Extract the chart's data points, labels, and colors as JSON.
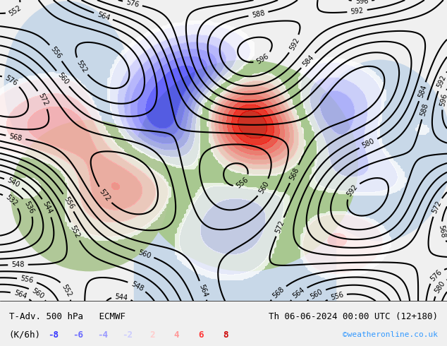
{
  "title_left": "T-Adv. 500 hPa   ECMWF",
  "title_right": "Th 06-06-2024 00:00 UTC (12+180)",
  "legend_label": "(K/6h)",
  "legend_values": [
    "-8",
    "-6",
    "-4",
    "-2",
    "2",
    "4",
    "6",
    "8"
  ],
  "legend_colors": [
    "#3333ff",
    "#6666ff",
    "#9999ff",
    "#ccccff",
    "#ffcccc",
    "#ff9999",
    "#ff3333",
    "#cc0000"
  ],
  "watermark": "©weatheronline.co.uk",
  "watermark_color": "#3399ff",
  "bg_color": "#f0f0f0",
  "map_bg": "#90c090",
  "bottom_bar_color": "#e8e8e8",
  "fig_width": 6.34,
  "fig_height": 4.9,
  "dpi": 100
}
